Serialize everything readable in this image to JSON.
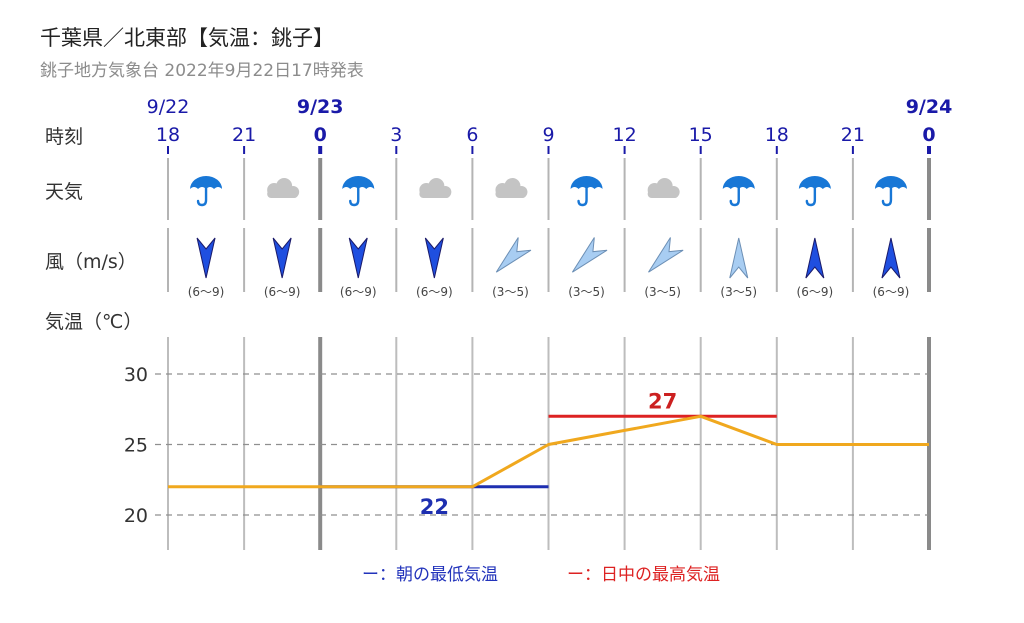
{
  "title": "千葉県／北東部【気温：銚子】",
  "subtitle": "銚子地方気象台 2022年9月22日17時発表",
  "row_labels": {
    "time": "時刻",
    "weather": "天気",
    "wind": "風（m/s）",
    "temp": "気温（℃）"
  },
  "legend": {
    "min": "ー：朝の最低気温",
    "max": "ー：日中の最高気温"
  },
  "colors": {
    "hour_text": "#1a1aa8",
    "min_line": "#1e2fb0",
    "max_line": "#dd2222",
    "temp_line": "#f0a81e",
    "rain_icon": "#1877d6",
    "cloud_icon": "#c4c4c4",
    "wind_strong": "#1f4fe0",
    "wind_weak": "#a8cdf2"
  },
  "chart_data": {
    "type": "line",
    "dates": [
      {
        "label": "9/22",
        "hour_index": 0,
        "bold": false
      },
      {
        "label": "9/23",
        "hour_index": 2,
        "bold": true
      },
      {
        "label": "9/24",
        "hour_index": 10,
        "bold": true
      }
    ],
    "hours": [
      "18",
      "21",
      "0",
      "3",
      "6",
      "9",
      "12",
      "15",
      "18",
      "21",
      "0"
    ],
    "bold_hours": [
      2,
      10
    ],
    "weather": [
      {
        "icon": "umbrella-icon",
        "kind": "rain"
      },
      {
        "icon": "cloud-icon",
        "kind": "cloud"
      },
      {
        "icon": "umbrella-icon",
        "kind": "rain"
      },
      {
        "icon": "cloud-icon",
        "kind": "cloud"
      },
      {
        "icon": "cloud-icon",
        "kind": "cloud"
      },
      {
        "icon": "umbrella-icon",
        "kind": "rain"
      },
      {
        "icon": "cloud-icon",
        "kind": "cloud"
      },
      {
        "icon": "umbrella-icon",
        "kind": "rain"
      },
      {
        "icon": "umbrella-icon",
        "kind": "rain"
      },
      {
        "icon": "umbrella-icon",
        "kind": "rain"
      }
    ],
    "wind": [
      {
        "direction": "N",
        "speed": "(6～9)",
        "strength": "strong"
      },
      {
        "direction": "N",
        "speed": "(6～9)",
        "strength": "strong"
      },
      {
        "direction": "N",
        "speed": "(6～9)",
        "strength": "strong"
      },
      {
        "direction": "N",
        "speed": "(6～9)",
        "strength": "strong"
      },
      {
        "direction": "NE",
        "speed": "(3～5)",
        "strength": "weak"
      },
      {
        "direction": "NE",
        "speed": "(3～5)",
        "strength": "weak"
      },
      {
        "direction": "NE",
        "speed": "(3～5)",
        "strength": "weak"
      },
      {
        "direction": "S",
        "speed": "(3～5)",
        "strength": "weak"
      },
      {
        "direction": "S",
        "speed": "(6～9)",
        "strength": "strong"
      },
      {
        "direction": "S",
        "speed": "(6～9)",
        "strength": "strong"
      }
    ],
    "temperature": {
      "x_hour_index": [
        0,
        1,
        2,
        3,
        4,
        5,
        6,
        7,
        8,
        9,
        10
      ],
      "values": [
        22,
        22,
        22,
        22,
        22,
        25,
        26,
        27,
        25,
        25,
        25
      ]
    },
    "min_temp": {
      "value": 22,
      "label": "22",
      "from_hour_index": 2,
      "to_hour_index": 5
    },
    "max_temp": {
      "value": 27,
      "label": "27",
      "from_hour_index": 5,
      "to_hour_index": 8
    },
    "yticks": [
      20,
      25,
      30
    ],
    "ylim": [
      17.5,
      32.5
    ],
    "grid": true
  }
}
